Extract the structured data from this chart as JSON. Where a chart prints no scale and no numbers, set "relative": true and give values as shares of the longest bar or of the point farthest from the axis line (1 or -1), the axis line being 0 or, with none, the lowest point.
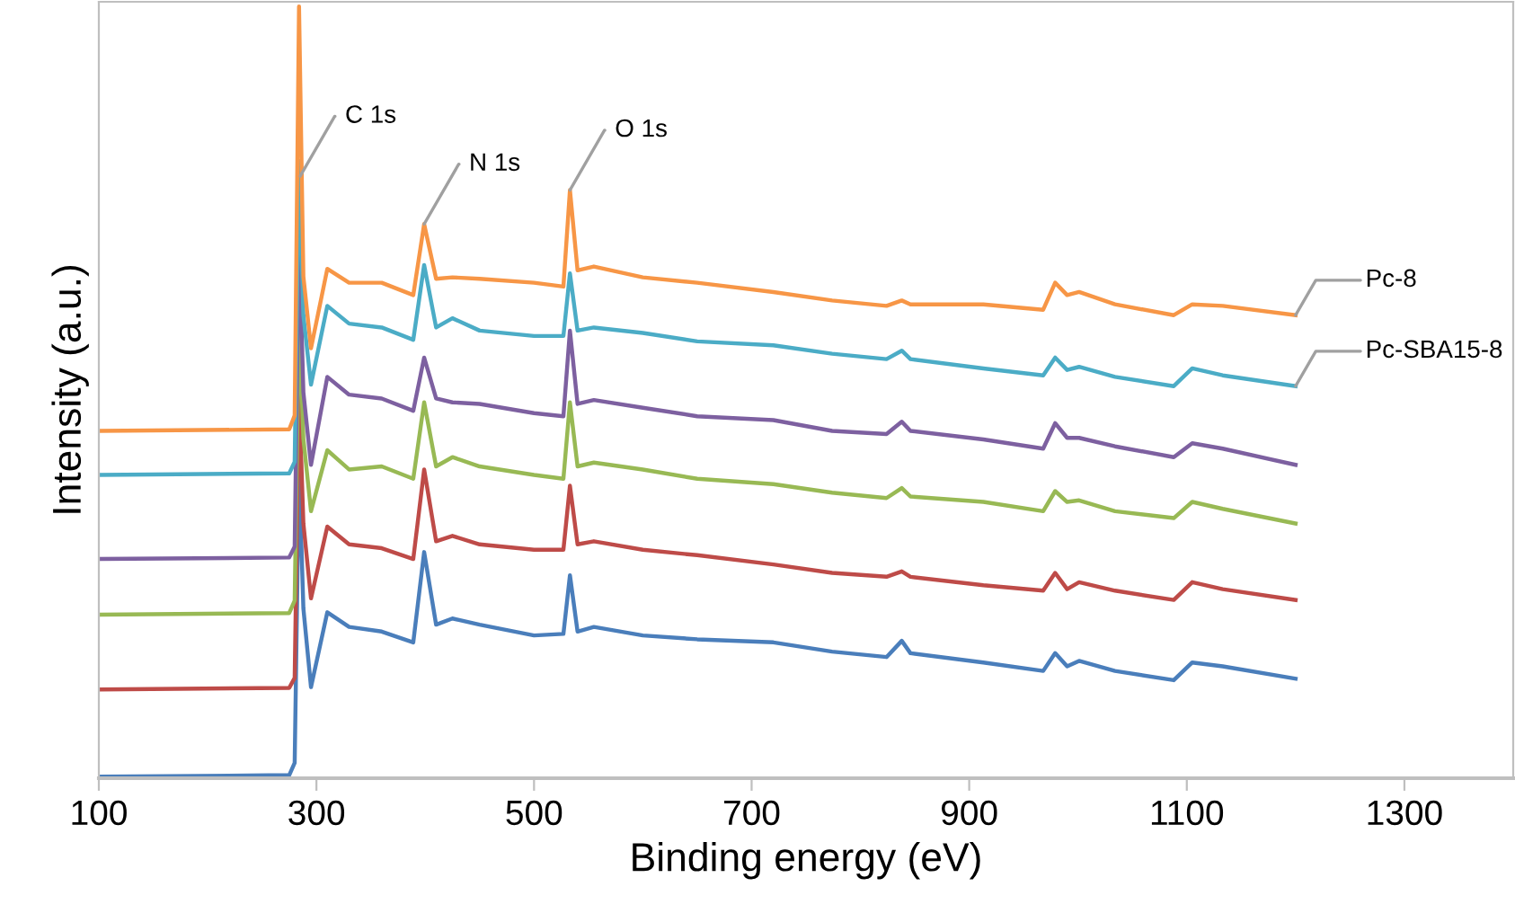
{
  "chart_data": {
    "type": "line",
    "xlabel": "Binding energy (eV)",
    "ylabel": "Intensity (a.u.)",
    "relative": true,
    "xlim": [
      100,
      1400
    ],
    "xticks": [
      100,
      300,
      500,
      700,
      900,
      1100,
      1300
    ],
    "grid": false,
    "legend": false,
    "marker": "none",
    "line_style": "solid",
    "x": [
      100,
      275,
      280,
      284,
      288,
      295,
      310,
      330,
      360,
      389,
      399,
      410,
      425,
      450,
      500,
      527,
      533,
      540,
      555,
      600,
      650,
      720,
      774,
      824,
      838,
      846,
      913,
      968,
      979,
      990,
      1001,
      1034,
      1088,
      1105,
      1133,
      1200
    ],
    "series": [
      {
        "color": "#4a7ebb",
        "values": [
          0.002,
          0.004,
          0.02,
          0.4,
          0.22,
          0.118,
          0.215,
          0.196,
          0.19,
          0.176,
          0.293,
          0.199,
          0.207,
          0.199,
          0.185,
          0.187,
          0.263,
          0.19,
          0.196,
          0.185,
          0.18,
          0.176,
          0.164,
          0.157,
          0.178,
          0.162,
          0.15,
          0.139,
          0.162,
          0.145,
          0.152,
          0.139,
          0.127,
          0.15,
          0.145,
          0.129
        ]
      },
      {
        "color": "#be4b48",
        "values": [
          0.115,
          0.117,
          0.13,
          0.5,
          0.33,
          0.233,
          0.326,
          0.303,
          0.298,
          0.284,
          0.4,
          0.307,
          0.314,
          0.303,
          0.296,
          0.296,
          0.379,
          0.303,
          0.307,
          0.296,
          0.289,
          0.277,
          0.266,
          0.261,
          0.268,
          0.261,
          0.25,
          0.243,
          0.266,
          0.245,
          0.254,
          0.243,
          0.231,
          0.254,
          0.245,
          0.231
        ]
      },
      {
        "color": "#98b954",
        "values": [
          0.212,
          0.214,
          0.23,
          0.6,
          0.44,
          0.346,
          0.425,
          0.4,
          0.404,
          0.388,
          0.487,
          0.404,
          0.416,
          0.404,
          0.393,
          0.388,
          0.487,
          0.404,
          0.409,
          0.4,
          0.388,
          0.381,
          0.37,
          0.363,
          0.376,
          0.365,
          0.358,
          0.346,
          0.372,
          0.358,
          0.36,
          0.346,
          0.337,
          0.358,
          0.349,
          0.33
        ]
      },
      {
        "color": "#7d60a0",
        "values": [
          0.284,
          0.286,
          0.3,
          0.7,
          0.5,
          0.406,
          0.52,
          0.497,
          0.492,
          0.476,
          0.545,
          0.492,
          0.487,
          0.485,
          0.473,
          0.469,
          0.58,
          0.485,
          0.49,
          0.48,
          0.469,
          0.464,
          0.45,
          0.446,
          0.462,
          0.45,
          0.439,
          0.427,
          0.46,
          0.441,
          0.441,
          0.43,
          0.416,
          0.434,
          0.427,
          0.406
        ]
      },
      {
        "name": "Pc-SBA15-8",
        "color": "#4bacc6",
        "values": [
          0.393,
          0.395,
          0.41,
          0.8,
          0.6,
          0.51,
          0.612,
          0.589,
          0.584,
          0.568,
          0.665,
          0.584,
          0.596,
          0.58,
          0.573,
          0.573,
          0.654,
          0.58,
          0.584,
          0.577,
          0.566,
          0.561,
          0.55,
          0.543,
          0.554,
          0.543,
          0.531,
          0.522,
          0.545,
          0.529,
          0.533,
          0.52,
          0.508,
          0.531,
          0.522,
          0.508
        ]
      },
      {
        "name": "Pc-8",
        "color": "#f79646",
        "values": [
          0.45,
          0.452,
          0.47,
          1.0,
          0.65,
          0.557,
          0.66,
          0.642,
          0.642,
          0.626,
          0.718,
          0.647,
          0.649,
          0.647,
          0.642,
          0.637,
          0.762,
          0.658,
          0.663,
          0.649,
          0.642,
          0.63,
          0.619,
          0.612,
          0.619,
          0.614,
          0.614,
          0.607,
          0.642,
          0.626,
          0.63,
          0.614,
          0.6,
          0.614,
          0.612,
          0.6
        ]
      }
    ],
    "annotations": [
      {
        "text": "C 1s",
        "x": 285,
        "y": 0.78
      },
      {
        "text": "N 1s",
        "x": 399,
        "y": 0.718
      },
      {
        "text": "O 1s",
        "x": 533,
        "y": 0.762
      }
    ]
  }
}
